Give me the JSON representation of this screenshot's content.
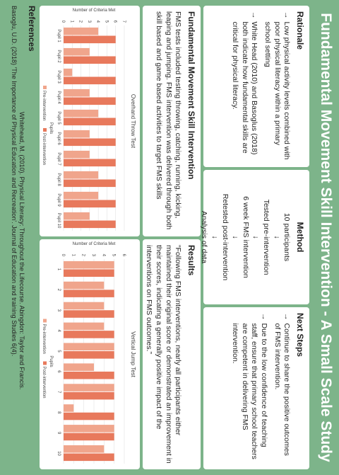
{
  "title": "Fundamental Movement Skill Intervention - A Small Scale Study",
  "rationale": {
    "heading": "Rationale",
    "items": [
      "Low physical activity levels combined with poor physical literacy within a primary school setting",
      "White Head (2010) and Basoglus (2018) both indicate how fundamental skills are critical for physical literacy."
    ]
  },
  "method": {
    "heading": "Method",
    "steps": [
      "10 participants",
      "Tested pre-intervention",
      "6 week FMS intervention",
      "Retested post-intervention",
      "Analysis of data"
    ]
  },
  "next_steps": {
    "heading": "Next Steps",
    "items": [
      "Continue to share the positive outcomes of FMS intervention.",
      "Due to the low confidence of teaching staff, ensure that primary school teachers are competent in delivering FMS intervention."
    ]
  },
  "intervention": {
    "heading": "Fundamental Movement Skill Intervention",
    "text": "FMS tests included testing throwing, catching, running, kicking, leaping and jumping. FMS intervention was delivered through both skill based and game based activities to target FMS skills"
  },
  "results": {
    "heading": "Results",
    "text": "“Following FMS interventions, nearly all participants either maintained their original score or demonstrated an improvement in their scores, indicating a generally positive impact of the interventions on FMS outcomes.”"
  },
  "chart_data": [
    {
      "type": "bar",
      "title": "Overhand Throw Test",
      "x_label": "Pupils",
      "y_label": "Number of Criteria Met",
      "categories": [
        "Pupil 1",
        "Pupil 2",
        "Pupil 3",
        "Pupil 4",
        "Pupil 5",
        "Pupil 6",
        "Pupil 7",
        "Pupil 8",
        "Pupil 9",
        "Pupil 10"
      ],
      "series": [
        {
          "name": "Pre-intervention",
          "color": "#f0a58c",
          "values": [
            4,
            3,
            1,
            3,
            4,
            3,
            3,
            4,
            4,
            3
          ]
        },
        {
          "name": "Post-intervention",
          "color": "#e8795c",
          "values": [
            6,
            6,
            6,
            6,
            6,
            6,
            6,
            6,
            6,
            6
          ]
        }
      ],
      "ylim": [
        0,
        7
      ],
      "yticks": [
        0,
        1,
        2,
        3,
        4,
        5,
        6,
        7
      ],
      "grid": true
    },
    {
      "type": "bar",
      "title": "Vertical Jump Test",
      "x_label": "Pupils",
      "y_label": "Number of Criteria Met",
      "categories": [
        "1",
        "2",
        "3",
        "4",
        "5",
        "6",
        "7",
        "8",
        "9",
        "10"
      ],
      "series": [
        {
          "name": "Pre-intervention",
          "color": "#f0a58c",
          "values": [
            5,
            4,
            4,
            4,
            5,
            3,
            5,
            1,
            5,
            4
          ]
        },
        {
          "name": "Post-intervention",
          "color": "#e8795c",
          "values": [
            5,
            5,
            5,
            5,
            5,
            5,
            5,
            5,
            5,
            5
          ]
        }
      ],
      "ylim": [
        0,
        6
      ],
      "yticks": [
        0,
        1,
        2,
        3,
        4,
        5,
        6
      ],
      "grid": true
    }
  ],
  "references": {
    "heading": "References",
    "items": [
      "Whitehead, M. (2010). Physical Literacy: Throughout the Lifecourse. Abingdon: Taylor and Francis.",
      "Basoglu, U.D. (2018) 'The Importance of Physical Education and Recreation'. Journal of Education and training Studies 6(4)."
    ]
  }
}
